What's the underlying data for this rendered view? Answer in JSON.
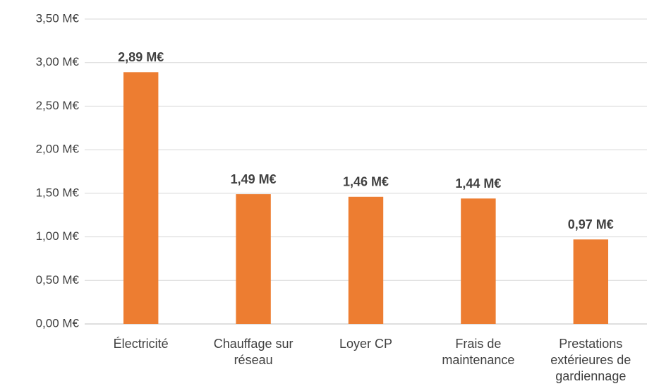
{
  "chart_data": {
    "type": "bar",
    "categories": [
      "Électricité",
      "Chauffage sur réseau",
      "Loyer CP",
      "Frais de maintenance",
      "Prestations extérieures de gardiennage"
    ],
    "values": [
      2.89,
      1.49,
      1.46,
      1.44,
      0.97
    ],
    "value_labels": [
      "2,89 M€",
      "1,49 M€",
      "1,46 M€",
      "1,44 M€",
      "0,97 M€"
    ],
    "color": "#ed7d31",
    "ylim": [
      0,
      3.5
    ],
    "yticks": [
      {
        "value": 0,
        "label": "0,00 M€"
      },
      {
        "value": 0.5,
        "label": "0,50 M€"
      },
      {
        "value": 1,
        "label": "1,00 M€"
      },
      {
        "value": 1.5,
        "label": "1,50 M€"
      },
      {
        "value": 2,
        "label": "2,00 M€"
      },
      {
        "value": 2.5,
        "label": "2,50 M€"
      },
      {
        "value": 3,
        "label": "3,00 M€"
      },
      {
        "value": 3.5,
        "label": "3,50 M€"
      }
    ],
    "grid": true
  }
}
